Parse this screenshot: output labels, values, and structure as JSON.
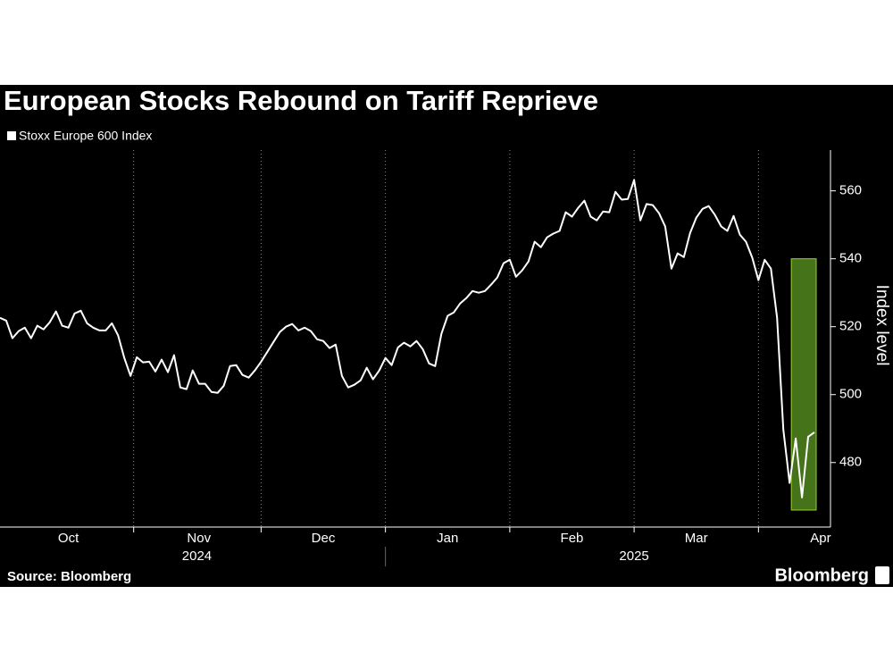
{
  "chart_data": {
    "type": "line",
    "title": "European Stocks Rebound on Tariff Reprieve",
    "y_axis_label": "Index level",
    "source": "Source: Bloomberg",
    "brand": "Bloomberg",
    "categories": [
      null,
      null,
      null,
      null,
      null,
      null,
      null,
      null,
      null,
      null,
      null,
      "Oct",
      null,
      null,
      null,
      null,
      null,
      null,
      null,
      null,
      null,
      null,
      null,
      null,
      null,
      null,
      null,
      null,
      null,
      null,
      null,
      null,
      "Nov",
      null,
      null,
      null,
      null,
      null,
      null,
      null,
      null,
      null,
      null,
      null,
      null,
      null,
      null,
      null,
      null,
      null,
      null,
      null,
      "Dec",
      null,
      null,
      null,
      null,
      null,
      null,
      null,
      null,
      null,
      null,
      null,
      null,
      null,
      null,
      null,
      null,
      null,
      null,
      null,
      "Jan",
      null,
      null,
      null,
      null,
      null,
      null,
      null,
      null,
      null,
      null,
      null,
      null,
      null,
      null,
      null,
      null,
      null,
      null,
      null,
      "Feb",
      null,
      null,
      null,
      null,
      null,
      null,
      null,
      null,
      null,
      null,
      null,
      null,
      null,
      null,
      null,
      null,
      null,
      null,
      null,
      "Mar",
      null,
      null,
      null,
      null,
      null,
      null,
      null,
      null,
      null,
      null,
      null,
      null,
      null,
      null,
      null,
      null,
      null,
      null,
      null,
      "Apr"
    ],
    "year_groups": [
      {
        "label": "2024",
        "months": 3
      },
      {
        "label": "2025",
        "months": 4
      }
    ],
    "series": [
      {
        "name": "Stoxx Europe 600 Index",
        "color": "#ffffff",
        "values": [
          522.6,
          521.8,
          516.6,
          518.7,
          519.7,
          516.6,
          520.3,
          519.2,
          521.3,
          524.5,
          520.3,
          519.7,
          523.9,
          524.7,
          521,
          519.7,
          518.9,
          518.9,
          521,
          517.4,
          510.8,
          505.5,
          511,
          509.5,
          509.7,
          506.8,
          510.3,
          506.6,
          511.6,
          502.1,
          501.6,
          507.1,
          503.2,
          503.2,
          500.8,
          500.5,
          502.6,
          508.4,
          508.7,
          505.8,
          505,
          507.1,
          509.7,
          512.6,
          515.5,
          518.4,
          520,
          520.8,
          518.9,
          519.7,
          518.7,
          516.3,
          515.8,
          513.7,
          514.7,
          505.5,
          502.1,
          502.9,
          504.2,
          507.9,
          504.5,
          507.1,
          510.8,
          508.7,
          513.9,
          515.3,
          514.2,
          515.8,
          513.4,
          509.2,
          508.4,
          517.9,
          523.2,
          524.2,
          526.8,
          528.4,
          530.5,
          530,
          530.5,
          532.4,
          534.5,
          538.7,
          539.7,
          534.7,
          536.6,
          539.2,
          545,
          543.4,
          546.3,
          547.4,
          548.2,
          553.7,
          552.4,
          555,
          557.1,
          552.4,
          551.3,
          553.9,
          553.7,
          559.7,
          557.4,
          557.6,
          563.2,
          551.3,
          556.1,
          555.8,
          553.4,
          549.5,
          537.1,
          541.6,
          540.5,
          547.6,
          552.1,
          554.7,
          555.5,
          552.9,
          549.5,
          548.2,
          552.6,
          547.1,
          545,
          540.3,
          533.7,
          539.7,
          537.1,
          522.6,
          489.7,
          474,
          487.1,
          469.7,
          487.6,
          488.9,
          null
        ]
      }
    ],
    "highlight": {
      "x_index_range": [
        127,
        131
      ],
      "y_range": [
        466,
        540
      ],
      "color": "#44731a",
      "border": "#9acd32"
    },
    "ylim": [
      461,
      572
    ],
    "yticks": [
      480,
      500,
      520,
      540,
      560
    ],
    "grid": "x-dotted"
  }
}
